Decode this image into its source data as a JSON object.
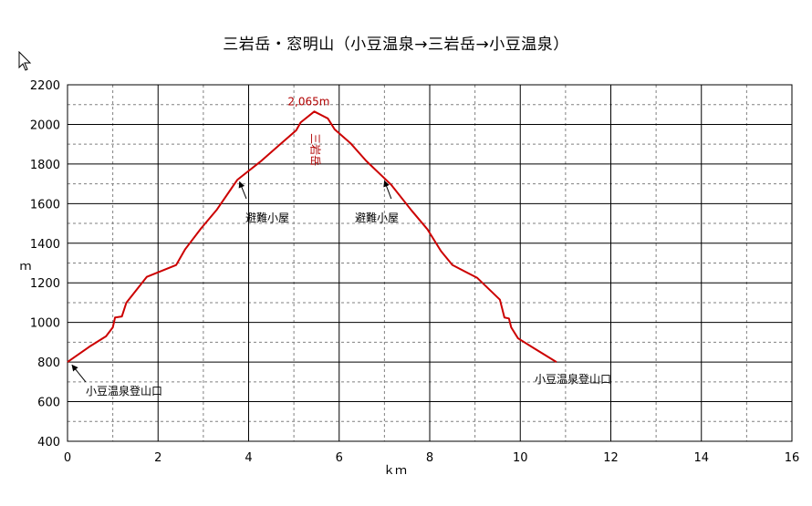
{
  "chart_data": {
    "type": "line",
    "title": "三岩岳・窓明山（小豆温泉→三岩岳→小豆温泉）",
    "xlabel": "ｋｍ",
    "ylabel": "ｍ",
    "xlim": [
      0,
      16
    ],
    "ylim": [
      400,
      2200
    ],
    "x_ticks": [
      0,
      2,
      4,
      6,
      8,
      10,
      12,
      14,
      16
    ],
    "y_ticks": [
      400,
      600,
      800,
      1000,
      1200,
      1400,
      1600,
      1800,
      2000,
      2200
    ],
    "grid": true,
    "line_color": "#cc0000",
    "series": [
      {
        "x": [
          0,
          0.5,
          0.85,
          1.0,
          1.05,
          1.2,
          1.3,
          1.75,
          2.4,
          2.6,
          2.95,
          3.3,
          3.75,
          4.25,
          4.7,
          5.05,
          5.15,
          5.45,
          5.75,
          5.9,
          6.25,
          6.6,
          7.15,
          7.6,
          7.95,
          8.25,
          8.5,
          9.05,
          9.55,
          9.65,
          9.75,
          9.8,
          9.95,
          10.3,
          10.8
        ],
        "y": [
          800,
          880,
          930,
          975,
          1025,
          1030,
          1100,
          1230,
          1290,
          1370,
          1475,
          1570,
          1720,
          1810,
          1900,
          1970,
          2010,
          2065,
          2030,
          1975,
          1905,
          1815,
          1695,
          1565,
          1470,
          1360,
          1290,
          1225,
          1115,
          1025,
          1020,
          975,
          920,
          870,
          800
        ]
      }
    ],
    "annotations": [
      {
        "text": "2,065m",
        "x": 5.45,
        "y": 2065
      },
      {
        "text": "三岩岳",
        "x": 5.45,
        "y": 1900
      },
      {
        "text": "避難小屋",
        "x": 3.8,
        "y": 1710
      },
      {
        "text": "避難小屋",
        "x": 7.0,
        "y": 1720
      },
      {
        "text": "小豆温泉登山口",
        "x": 0,
        "y": 800
      },
      {
        "text": "小豆温泉登山口",
        "x": 10.8,
        "y": 800
      }
    ]
  }
}
